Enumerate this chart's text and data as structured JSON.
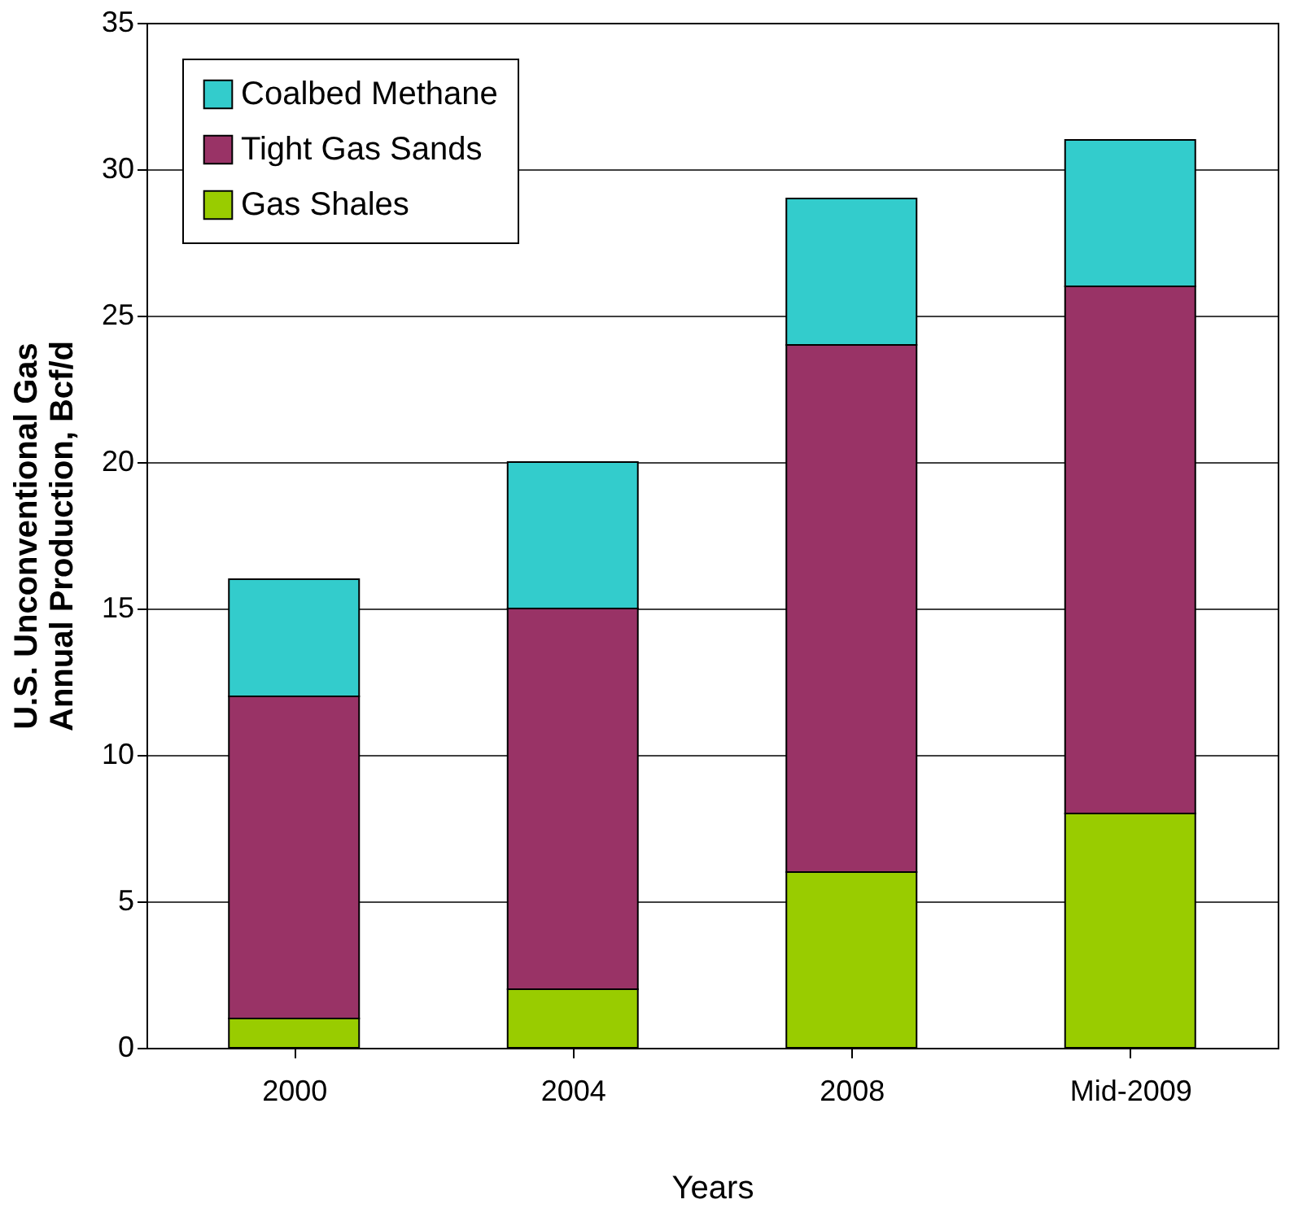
{
  "chart_data": {
    "type": "bar",
    "stacked": true,
    "xlabel": "Years",
    "ylabel": "U.S. Unconventional Gas\nAnnual Production, Bcf/d",
    "categories": [
      "2000",
      "2004",
      "2008",
      "Mid-2009"
    ],
    "series": [
      {
        "name": "Gas Shales",
        "color": "#99cc00",
        "values": [
          1,
          2,
          6,
          8
        ]
      },
      {
        "name": "Tight Gas Sands",
        "color": "#993366",
        "values": [
          11,
          13,
          18,
          18
        ]
      },
      {
        "name": "Coalbed Methane",
        "color": "#33cccc",
        "values": [
          4,
          5,
          5,
          5
        ]
      }
    ],
    "ylim": [
      0,
      35
    ],
    "yticks": [
      0,
      5,
      10,
      15,
      20,
      25,
      30,
      35
    ],
    "grid": "y",
    "legend": "top left"
  }
}
